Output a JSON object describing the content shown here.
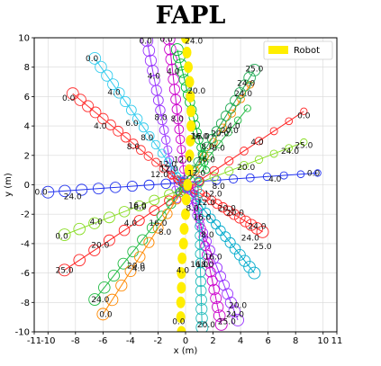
{
  "chart_data": {
    "type": "scatter",
    "title": "FAPL",
    "xlabel": "x (m)",
    "ylabel": "y (m)",
    "xlim": [
      -11,
      11
    ],
    "ylim": [
      -10,
      10
    ],
    "xticks": [
      -11,
      -10,
      -8,
      -6,
      -4,
      -2,
      0,
      2,
      4,
      6,
      8,
      10,
      11
    ],
    "yticks": [
      -10,
      -8,
      -6,
      -4,
      -2,
      0,
      2,
      4,
      6,
      8,
      10
    ],
    "grid": true,
    "legend": {
      "position": "top-right",
      "entries": [
        {
          "name": "Robot",
          "color": "#ffee00"
        }
      ]
    },
    "robot": {
      "name": "Robot",
      "color": "#ffee00",
      "points": [
        [
          0,
          10
        ],
        [
          0.1,
          9
        ],
        [
          0.2,
          8
        ],
        [
          0.3,
          7
        ],
        [
          0.35,
          6
        ],
        [
          0.4,
          5
        ],
        [
          0.4,
          4
        ],
        [
          0.35,
          3
        ],
        [
          0.3,
          2
        ],
        [
          0.25,
          1
        ],
        [
          0.15,
          0
        ],
        [
          0.05,
          -1
        ],
        [
          0,
          -2
        ],
        [
          -0.1,
          -3
        ],
        [
          -0.15,
          -4
        ],
        [
          -0.25,
          -5
        ],
        [
          -0.3,
          -6
        ],
        [
          -0.3,
          -7
        ],
        [
          -0.35,
          -8
        ],
        [
          -0.35,
          -9
        ],
        [
          -0.3,
          -10
        ]
      ],
      "labels": [
        {
          "t": "24.0",
          "x": 0.6,
          "y": 9.8
        },
        {
          "t": "20.0",
          "x": 0.8,
          "y": 6.4
        },
        {
          "t": "16.0",
          "x": 1.0,
          "y": 3.3
        },
        {
          "t": "12.0",
          "x": 0.8,
          "y": 0.8
        },
        {
          "t": "8.0",
          "x": 0.5,
          "y": -1.6
        },
        {
          "t": "4.0",
          "x": -0.2,
          "y": -5.8
        },
        {
          "t": "0.0",
          "x": -0.5,
          "y": -9.3
        }
      ]
    },
    "agents": [
      {
        "color": "#9933ff",
        "start": [
          -2.8,
          9.8
        ],
        "end": [
          -0.6,
          -1.0
        ],
        "labels": [
          {
            "t": "0.0",
            "x": -2.9,
            "y": 9.8
          },
          {
            "t": "4.0",
            "x": -2.3,
            "y": 7.4
          },
          {
            "t": "8.0",
            "x": -1.8,
            "y": 4.6
          },
          {
            "t": "12.0",
            "x": -1.3,
            "y": 1.4
          }
        ]
      },
      {
        "color": "#cc00cc",
        "start": [
          -1.2,
          9.9
        ],
        "end": [
          0.1,
          -1.0
        ],
        "labels": [
          {
            "t": "0.0",
            "x": -1.4,
            "y": 9.9
          },
          {
            "t": "4.0",
            "x": -0.9,
            "y": 7.7
          },
          {
            "t": "8.0",
            "x": -0.6,
            "y": 4.5
          },
          {
            "t": "12.0",
            "x": -0.2,
            "y": 1.7
          }
        ]
      },
      {
        "color": "#33ccee",
        "start": [
          -6.6,
          8.6
        ],
        "end": [
          0.5,
          -0.8
        ],
        "labels": [
          {
            "t": "0.0",
            "x": -6.8,
            "y": 8.6
          },
          {
            "t": "4.0",
            "x": -5.2,
            "y": 6.3
          },
          {
            "t": "6.0",
            "x": -3.9,
            "y": 4.2
          },
          {
            "t": "8.0",
            "x": -2.8,
            "y": 3.2
          },
          {
            "t": "12.0",
            "x": -1.2,
            "y": 1.1
          }
        ]
      },
      {
        "color": "#ff3333",
        "start": [
          -8.2,
          6.2
        ],
        "end": [
          0.6,
          -0.6
        ],
        "labels": [
          {
            "t": "0.0",
            "x": -8.5,
            "y": 5.9
          },
          {
            "t": "4.0",
            "x": -6.2,
            "y": 4.0
          },
          {
            "t": "8.0",
            "x": -3.8,
            "y": 2.6
          },
          {
            "t": "12.0",
            "x": -1.9,
            "y": 0.7
          }
        ]
      },
      {
        "color": "#2233ee",
        "start": [
          -10.0,
          -0.5
        ],
        "end": [
          9.6,
          0.8
        ],
        "labels": [
          {
            "t": "0.0",
            "x": -10.5,
            "y": -0.5
          },
          {
            "t": "24.0",
            "x": -8.2,
            "y": -0.8
          },
          {
            "t": "16.0",
            "x": -3.5,
            "y": -1.4
          },
          {
            "t": "8.0",
            "x": 2.4,
            "y": -0.1
          },
          {
            "t": "4.0",
            "x": 6.5,
            "y": 0.4
          },
          {
            "t": "0.0",
            "x": 9.3,
            "y": 0.8
          }
        ]
      },
      {
        "color": "#88dd22",
        "start": [
          -8.8,
          -3.4
        ],
        "end": [
          8.6,
          2.9
        ],
        "labels": [
          {
            "t": "0.0",
            "x": -9.0,
            "y": -3.5
          },
          {
            "t": "4.0",
            "x": -6.5,
            "y": -2.5
          },
          {
            "t": "8.0",
            "x": -3.3,
            "y": -1.5
          },
          {
            "t": "20.0",
            "x": 4.4,
            "y": 1.2
          },
          {
            "t": "24.0",
            "x": 7.6,
            "y": 2.3
          },
          {
            "t": "25.0",
            "x": 8.6,
            "y": 2.7
          }
        ]
      },
      {
        "color": "#ff2222",
        "start": [
          -8.8,
          -5.8
        ],
        "end": [
          8.6,
          5.0
        ],
        "labels": [
          {
            "t": "25.0",
            "x": -8.8,
            "y": -5.8
          },
          {
            "t": "20.0",
            "x": -6.2,
            "y": -4.1
          },
          {
            "t": "4.0",
            "x": -4.0,
            "y": -2.6
          },
          {
            "t": "4.0",
            "x": 5.2,
            "y": 2.9
          },
          {
            "t": "0.0",
            "x": 8.6,
            "y": 4.7
          }
        ]
      },
      {
        "color": "#22bb44",
        "start": [
          -6.6,
          -7.8
        ],
        "end": [
          4.5,
          5.2
        ],
        "labels": [
          {
            "t": "24.0",
            "x": -6.2,
            "y": -7.8
          },
          {
            "t": "20.0",
            "x": -3.6,
            "y": -5.5
          },
          {
            "t": "16.0",
            "x": -2.0,
            "y": -2.6
          },
          {
            "t": "16.0",
            "x": 1.5,
            "y": 1.7
          },
          {
            "t": "20.0",
            "x": 3.2,
            "y": 3.7
          }
        ]
      },
      {
        "color": "#ff8800",
        "start": [
          -6.0,
          -8.8
        ],
        "end": [
          4.7,
          6.8
        ],
        "labels": [
          {
            "t": "0.0",
            "x": -5.8,
            "y": -8.8
          },
          {
            "t": "4.0",
            "x": -3.4,
            "y": -5.7
          },
          {
            "t": "8.0",
            "x": -1.5,
            "y": -3.2
          },
          {
            "t": "8.0",
            "x": 1.6,
            "y": 2.6
          },
          {
            "t": "24.0",
            "x": 4.4,
            "y": 6.9
          }
        ]
      },
      {
        "color": "#22aa55",
        "start": [
          5.0,
          7.8
        ],
        "end": [
          -0.5,
          -0.5
        ],
        "labels": [
          {
            "t": "25.0",
            "x": 5.0,
            "y": 7.9
          },
          {
            "t": "24.0",
            "x": 4.2,
            "y": 6.2
          },
          {
            "t": "4.0",
            "x": 3.5,
            "y": 4.0
          },
          {
            "t": "8.0",
            "x": 2.4,
            "y": 2.5
          }
        ]
      },
      {
        "color": "#00aacc",
        "start": [
          5.0,
          -6.0
        ],
        "end": [
          -0.6,
          0.6
        ],
        "labels": [
          {
            "t": "25.0",
            "x": 5.6,
            "y": -4.2
          },
          {
            "t": "24.0",
            "x": 4.7,
            "y": -3.6
          },
          {
            "t": "20.0",
            "x": 3.0,
            "y": -1.6
          },
          {
            "t": "12.0",
            "x": 1.5,
            "y": -1.2
          }
        ]
      },
      {
        "color": "#ff2222",
        "start": [
          5.6,
          -3.2
        ],
        "end": [
          -1.0,
          0.6
        ],
        "labels": [
          {
            "t": "24.0",
            "x": 5.2,
            "y": -2.8
          },
          {
            "t": "20.0",
            "x": 3.6,
            "y": -1.9
          },
          {
            "t": "12.0",
            "x": 2.0,
            "y": -0.6
          }
        ]
      },
      {
        "color": "#9933ff",
        "start": [
          3.8,
          -9.2
        ],
        "end": [
          -0.2,
          0.3
        ],
        "labels": [
          {
            "t": "20.0",
            "x": 3.8,
            "y": -8.2
          },
          {
            "t": "24.0",
            "x": 3.6,
            "y": -8.8
          },
          {
            "t": "16.0",
            "x": 2.0,
            "y": -4.9
          },
          {
            "t": "8.0",
            "x": 1.6,
            "y": -3.4
          }
        ]
      },
      {
        "color": "#cc00cc",
        "start": [
          2.6,
          -9.5
        ],
        "end": [
          0.5,
          0.0
        ],
        "labels": [
          {
            "t": "25.0",
            "x": 3.0,
            "y": -9.3
          },
          {
            "t": "18.0",
            "x": 1.4,
            "y": -5.4
          },
          {
            "t": "16.0",
            "x": 1.2,
            "y": -2.2
          }
        ]
      },
      {
        "color": "#22bbbb",
        "start": [
          1.2,
          -9.7
        ],
        "end": [
          0.9,
          0.3
        ],
        "labels": [
          {
            "t": "20.0",
            "x": 1.5,
            "y": -9.5
          },
          {
            "t": "16.0",
            "x": 1.0,
            "y": -5.4
          }
        ]
      },
      {
        "color": "#00bb33",
        "start": [
          -0.6,
          9.2
        ],
        "end": [
          1.5,
          1.0
        ],
        "labels": [
          {
            "t": "16.0",
            "x": 1.1,
            "y": 3.3
          },
          {
            "t": "20.0",
            "x": 2.5,
            "y": 3.5
          }
        ]
      }
    ]
  }
}
